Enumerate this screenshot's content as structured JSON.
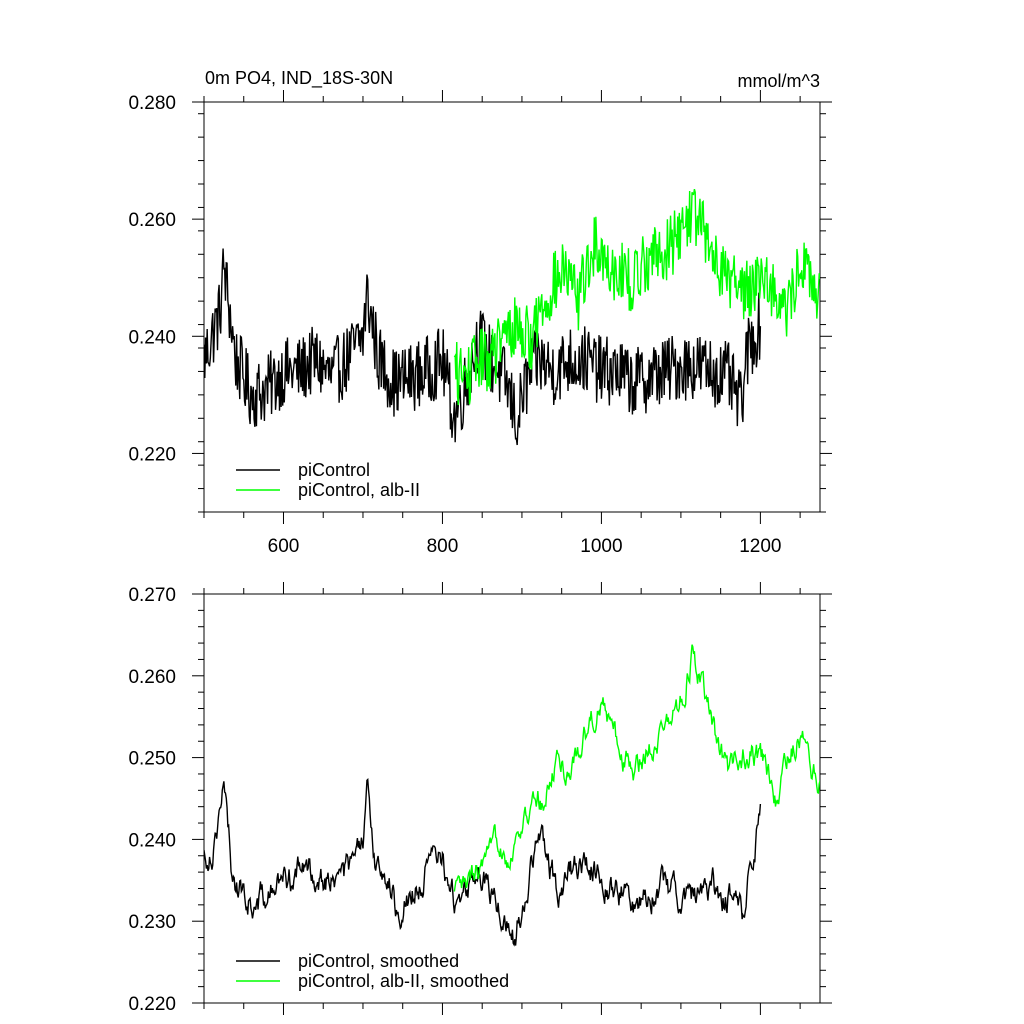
{
  "chart_data": [
    {
      "type": "line",
      "title": "0m PO4, IND_18S-30N",
      "units": "mmol/m^3",
      "xlim": [
        500,
        1275
      ],
      "ylim": [
        0.21,
        0.28
      ],
      "xticks": [
        600,
        800,
        1000,
        1200
      ],
      "xtick_labels": [
        "600",
        "800",
        "1000",
        "1200"
      ],
      "yticks": [
        0.22,
        0.24,
        0.26,
        0.28
      ],
      "ytick_labels": [
        "0.220",
        "0.240",
        "0.260",
        "0.280"
      ],
      "legend_position": "bottom-left",
      "series": [
        {
          "name": "piControl",
          "color": "#000000",
          "x_range": [
            500,
            1200
          ],
          "points": [
            [
              500,
              0.236
            ],
            [
              520,
              0.244
            ],
            [
              525,
              0.252
            ],
            [
              540,
              0.236
            ],
            [
              560,
              0.23
            ],
            [
              580,
              0.231
            ],
            [
              600,
              0.234
            ],
            [
              620,
              0.234
            ],
            [
              640,
              0.236
            ],
            [
              660,
              0.233
            ],
            [
              680,
              0.236
            ],
            [
              700,
              0.24
            ],
            [
              705,
              0.247
            ],
            [
              720,
              0.236
            ],
            [
              740,
              0.232
            ],
            [
              760,
              0.233
            ],
            [
              780,
              0.234
            ],
            [
              800,
              0.236
            ],
            [
              815,
              0.226
            ],
            [
              830,
              0.232
            ],
            [
              845,
              0.24
            ],
            [
              860,
              0.236
            ],
            [
              880,
              0.232
            ],
            [
              895,
              0.225
            ],
            [
              900,
              0.23
            ],
            [
              920,
              0.236
            ],
            [
              940,
              0.234
            ],
            [
              960,
              0.236
            ],
            [
              980,
              0.236
            ],
            [
              1000,
              0.234
            ],
            [
              1020,
              0.234
            ],
            [
              1040,
              0.232
            ],
            [
              1060,
              0.233
            ],
            [
              1080,
              0.234
            ],
            [
              1100,
              0.235
            ],
            [
              1120,
              0.235
            ],
            [
              1140,
              0.234
            ],
            [
              1160,
              0.233
            ],
            [
              1175,
              0.228
            ],
            [
              1185,
              0.238
            ],
            [
              1200,
              0.242
            ]
          ],
          "noise_amplitude": 0.006
        },
        {
          "name": "piControl, alb-II",
          "color": "#00ff00",
          "x_range": [
            815,
            1275
          ],
          "points": [
            [
              815,
              0.234
            ],
            [
              830,
              0.233
            ],
            [
              845,
              0.236
            ],
            [
              860,
              0.236
            ],
            [
              880,
              0.24
            ],
            [
              895,
              0.242
            ],
            [
              910,
              0.239
            ],
            [
              925,
              0.245
            ],
            [
              940,
              0.249
            ],
            [
              955,
              0.251
            ],
            [
              970,
              0.246
            ],
            [
              985,
              0.253
            ],
            [
              995,
              0.256
            ],
            [
              1010,
              0.252
            ],
            [
              1025,
              0.251
            ],
            [
              1040,
              0.249
            ],
            [
              1055,
              0.253
            ],
            [
              1070,
              0.254
            ],
            [
              1085,
              0.255
            ],
            [
              1100,
              0.258
            ],
            [
              1115,
              0.262
            ],
            [
              1130,
              0.257
            ],
            [
              1145,
              0.253
            ],
            [
              1160,
              0.25
            ],
            [
              1175,
              0.248
            ],
            [
              1190,
              0.249
            ],
            [
              1205,
              0.251
            ],
            [
              1220,
              0.247
            ],
            [
              1235,
              0.244
            ],
            [
              1250,
              0.253
            ],
            [
              1265,
              0.249
            ],
            [
              1275,
              0.246
            ]
          ],
          "noise_amplitude": 0.0055
        }
      ]
    },
    {
      "type": "line",
      "xlim": [
        500,
        1275
      ],
      "ylim": [
        0.22,
        0.27
      ],
      "xticks": [
        600,
        800,
        1000,
        1200
      ],
      "yticks": [
        0.22,
        0.23,
        0.24,
        0.25,
        0.26,
        0.27
      ],
      "ytick_labels": [
        "0.220",
        "0.230",
        "0.240",
        "0.250",
        "0.260",
        "0.270"
      ],
      "legend_position": "bottom-left",
      "series": [
        {
          "name": "piControl, smoothed",
          "color": "#000000",
          "x_range": [
            500,
            1200
          ],
          "points": [
            [
              500,
              0.238
            ],
            [
              510,
              0.239
            ],
            [
              520,
              0.244
            ],
            [
              525,
              0.246
            ],
            [
              535,
              0.236
            ],
            [
              550,
              0.233
            ],
            [
              565,
              0.232
            ],
            [
              580,
              0.233
            ],
            [
              600,
              0.235
            ],
            [
              620,
              0.236
            ],
            [
              640,
              0.236
            ],
            [
              660,
              0.235
            ],
            [
              680,
              0.236
            ],
            [
              700,
              0.239
            ],
            [
              705,
              0.245
            ],
            [
              715,
              0.238
            ],
            [
              730,
              0.236
            ],
            [
              740,
              0.232
            ],
            [
              760,
              0.233
            ],
            [
              780,
              0.236
            ],
            [
              800,
              0.238
            ],
            [
              815,
              0.232
            ],
            [
              830,
              0.234
            ],
            [
              845,
              0.236
            ],
            [
              860,
              0.234
            ],
            [
              875,
              0.231
            ],
            [
              890,
              0.228
            ],
            [
              905,
              0.234
            ],
            [
              920,
              0.24
            ],
            [
              930,
              0.238
            ],
            [
              945,
              0.234
            ],
            [
              960,
              0.236
            ],
            [
              980,
              0.237
            ],
            [
              1000,
              0.236
            ],
            [
              1020,
              0.234
            ],
            [
              1040,
              0.232
            ],
            [
              1060,
              0.234
            ],
            [
              1080,
              0.234
            ],
            [
              1100,
              0.234
            ],
            [
              1120,
              0.233
            ],
            [
              1140,
              0.234
            ],
            [
              1160,
              0.233
            ],
            [
              1170,
              0.233
            ],
            [
              1180,
              0.229
            ],
            [
              1185,
              0.238
            ],
            [
              1200,
              0.242
            ]
          ],
          "noise_amplitude": 0.0025
        },
        {
          "name": "piControl, alb-II, smoothed",
          "color": "#00ff00",
          "x_range": [
            815,
            1275
          ],
          "points": [
            [
              815,
              0.233
            ],
            [
              830,
              0.234
            ],
            [
              845,
              0.236
            ],
            [
              860,
              0.237
            ],
            [
              870,
              0.24
            ],
            [
              885,
              0.238
            ],
            [
              900,
              0.242
            ],
            [
              915,
              0.244
            ],
            [
              930,
              0.245
            ],
            [
              945,
              0.25
            ],
            [
              960,
              0.248
            ],
            [
              975,
              0.252
            ],
            [
              990,
              0.255
            ],
            [
              1000,
              0.258
            ],
            [
              1010,
              0.254
            ],
            [
              1025,
              0.251
            ],
            [
              1040,
              0.248
            ],
            [
              1055,
              0.251
            ],
            [
              1070,
              0.253
            ],
            [
              1085,
              0.254
            ],
            [
              1100,
              0.257
            ],
            [
              1115,
              0.263
            ],
            [
              1130,
              0.257
            ],
            [
              1145,
              0.252
            ],
            [
              1160,
              0.248
            ],
            [
              1175,
              0.25
            ],
            [
              1190,
              0.251
            ],
            [
              1205,
              0.249
            ],
            [
              1220,
              0.244
            ],
            [
              1235,
              0.25
            ],
            [
              1250,
              0.253
            ],
            [
              1265,
              0.249
            ],
            [
              1275,
              0.246
            ]
          ],
          "noise_amplitude": 0.0022
        }
      ]
    }
  ]
}
